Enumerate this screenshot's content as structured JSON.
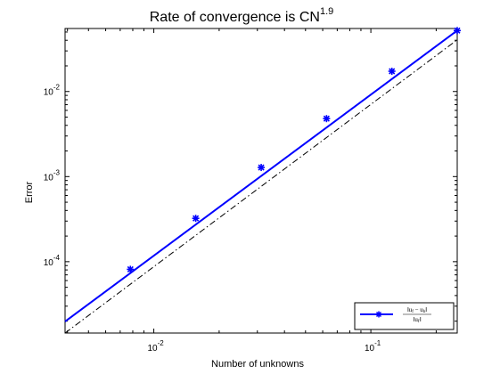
{
  "chart_data": {
    "type": "line",
    "title": "Rate of convergence is CN",
    "title_exponent": "1.9",
    "xlabel": "Number of unknowns",
    "ylabel": "Error",
    "xscale": "log",
    "yscale": "log",
    "xlim": [
      0.0039,
      0.25
    ],
    "ylim": [
      1.45e-05,
      0.055
    ],
    "xticks": [
      {
        "value": 0.01,
        "base": "10",
        "exp": "-2"
      },
      {
        "value": 0.1,
        "base": "10",
        "exp": "-1"
      }
    ],
    "yticks": [
      {
        "value": 0.0001,
        "base": "10",
        "exp": "-4"
      },
      {
        "value": 0.001,
        "base": "10",
        "exp": "-3"
      },
      {
        "value": 0.01,
        "base": "10",
        "exp": "-2"
      }
    ],
    "grid": false,
    "legend_position": "bottom-right",
    "series": [
      {
        "name": "‖u_f − u_h‖ / ‖u_f‖",
        "color": "#0000ff",
        "style": "solid",
        "marker": "asterisk",
        "line_x": [
          0.0039,
          0.25
        ],
        "line_y": [
          1.98e-05,
          0.052
        ],
        "points": [
          {
            "x": 0.0078,
            "y": 8.13e-05
          },
          {
            "x": 0.0156,
            "y": 0.000323
          },
          {
            "x": 0.03125,
            "y": 0.00128
          },
          {
            "x": 0.0625,
            "y": 0.0048
          },
          {
            "x": 0.125,
            "y": 0.0173
          },
          {
            "x": 0.25,
            "y": 0.052
          }
        ]
      },
      {
        "name": "",
        "color": "#000000",
        "style": "dash-dot",
        "line_x": [
          0.0039,
          0.25
        ],
        "line_y": [
          1.45e-05,
          0.0405
        ]
      }
    ]
  }
}
